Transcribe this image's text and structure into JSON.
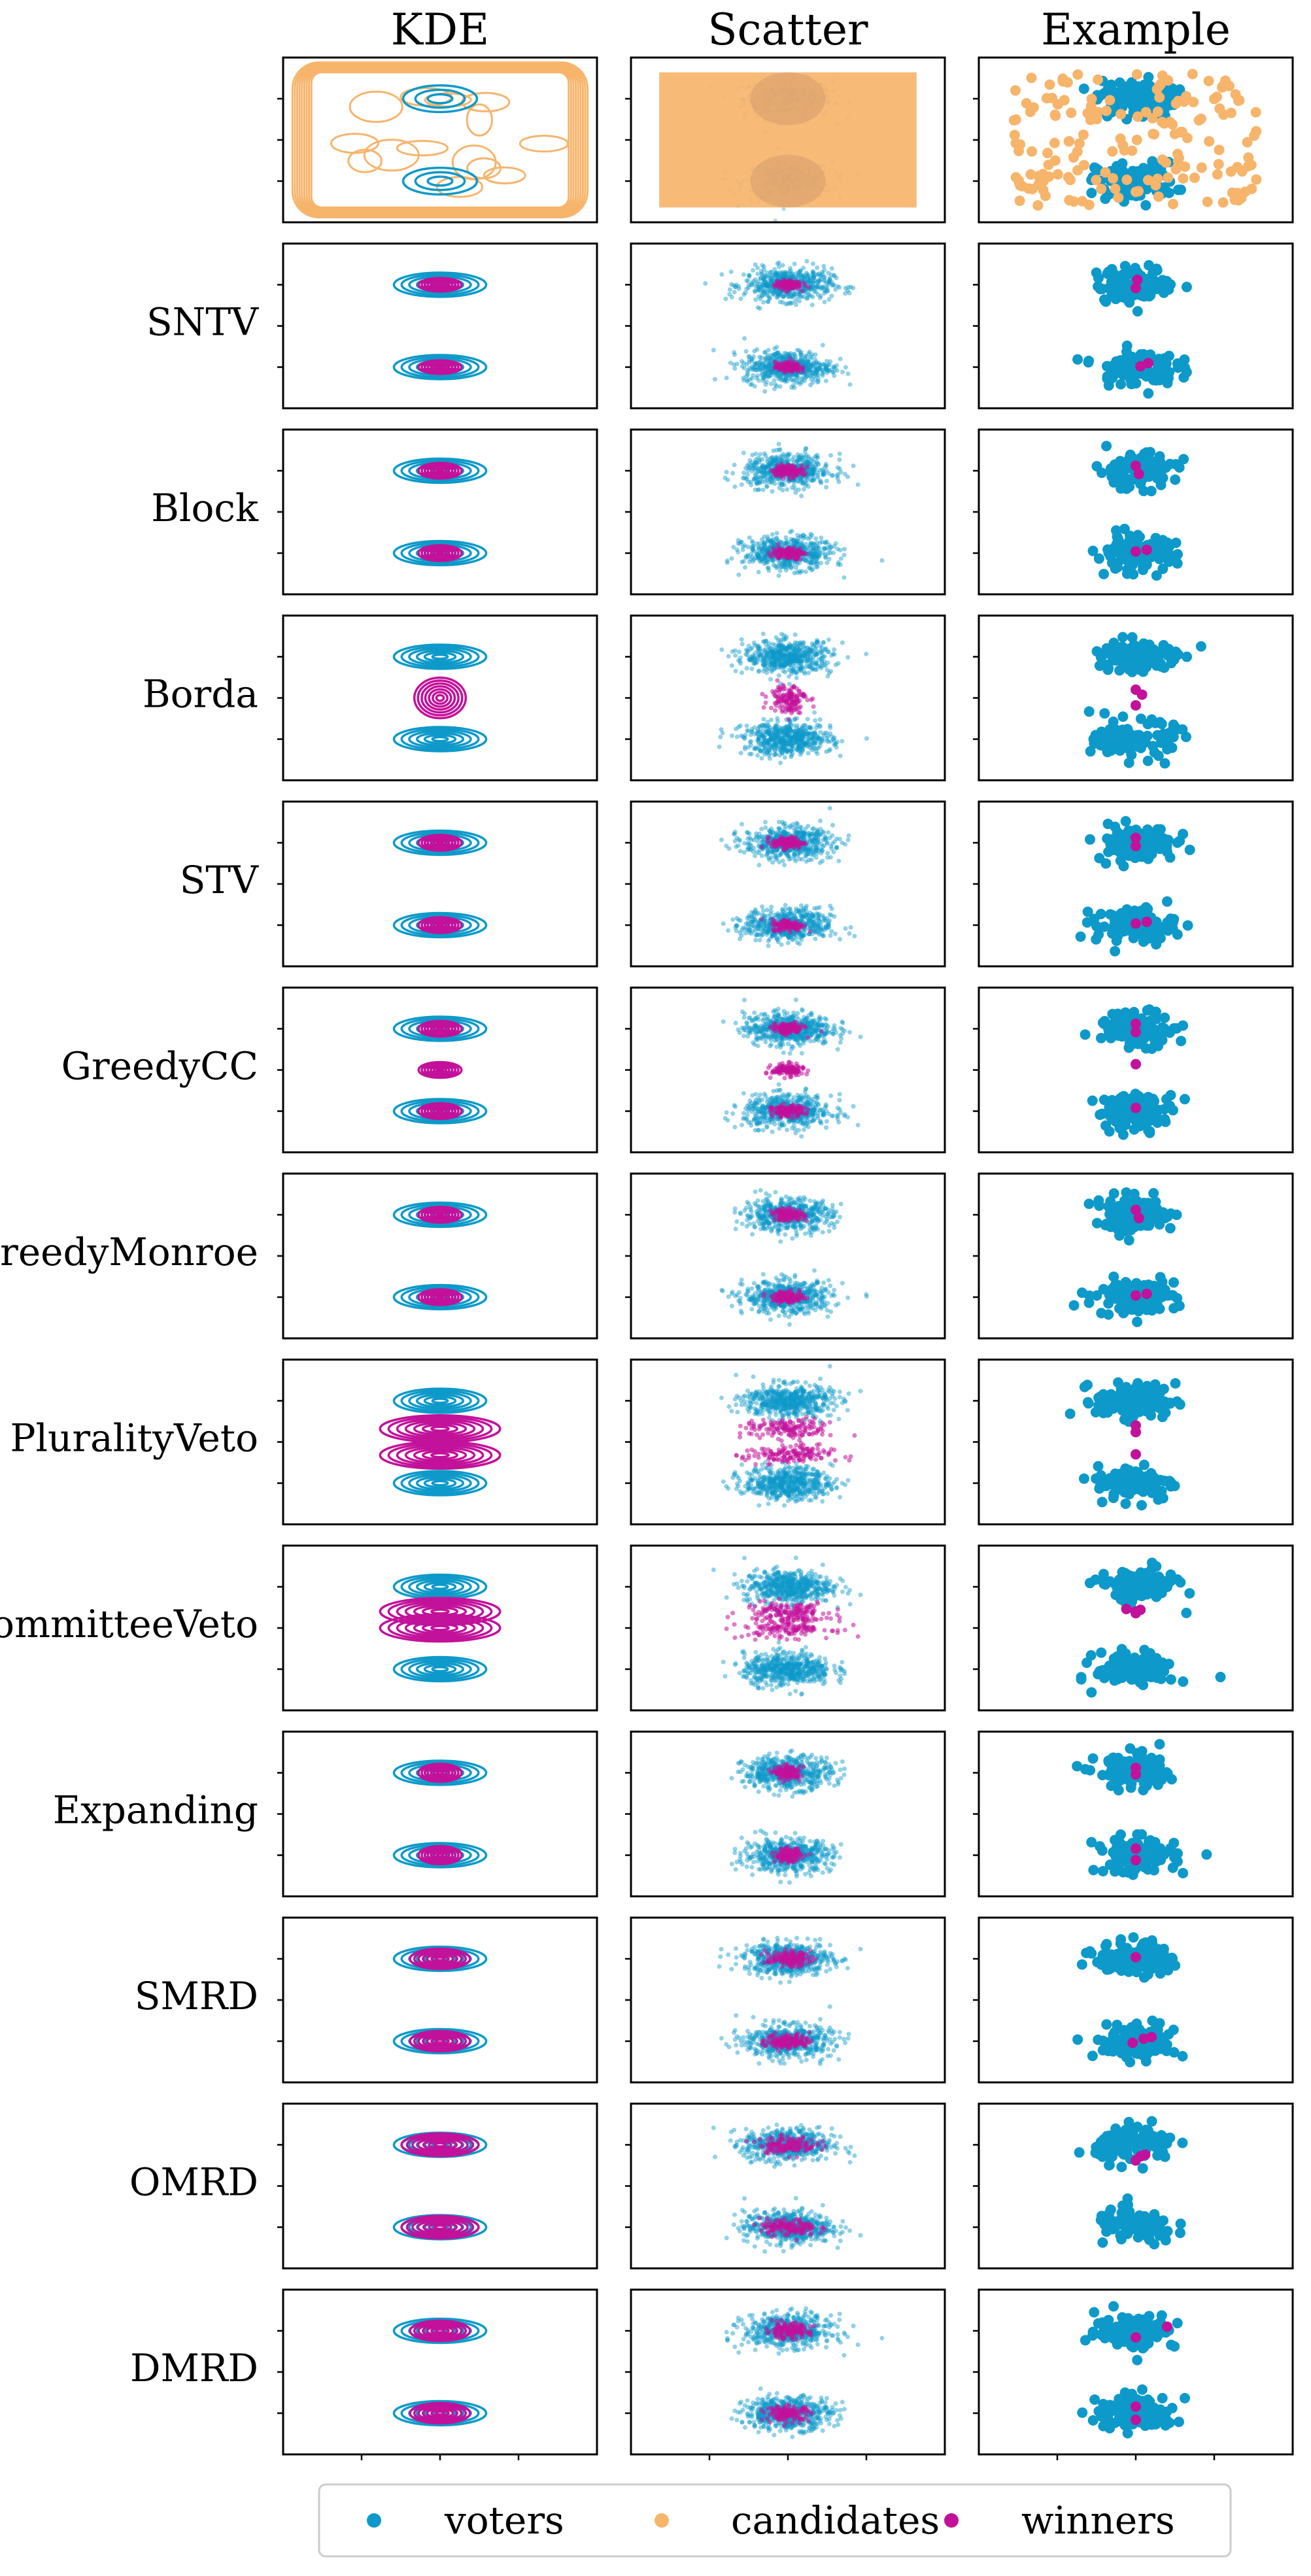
{
  "column_titles": [
    "KDE",
    "Scatter",
    "Example"
  ],
  "row_labels": [
    "",
    "SNTV",
    "Block",
    "Borda",
    "STV",
    "GreedyCC",
    "GreedyMonroe",
    "PluralityVeto",
    "CommitteeVeto",
    "Expanding",
    "SMRD",
    "OMRD",
    "DMRD"
  ],
  "legend": [
    {
      "label": "voters",
      "color": "#0d99c9"
    },
    {
      "label": "candidates",
      "color": "#f7b46b"
    },
    {
      "label": "winners",
      "color": "#c2119a"
    }
  ],
  "colors": {
    "voters": "#0d99c9",
    "candidates": "#f7b46b",
    "winners": "#c2119a"
  },
  "chart_data": {
    "type": "scatter",
    "title": "",
    "xlabel": "",
    "ylabel": "",
    "xlim": [
      -1,
      1
    ],
    "ylim": [
      -1,
      1
    ],
    "grid": false,
    "legend_position": "bottom-center",
    "voter_clusters": [
      {
        "x": 0,
        "y": 0.5,
        "sx": 0.14,
        "sy": 0.07
      },
      {
        "x": 0,
        "y": -0.5,
        "sx": 0.14,
        "sy": 0.07
      }
    ],
    "rows": [
      {
        "method": "",
        "shows": "voters and candidates"
      },
      {
        "method": "SNTV",
        "winner_centers": [
          [
            0,
            0.5
          ],
          [
            0,
            -0.5
          ]
        ],
        "winner_spread": [
          0.04,
          0.03
        ],
        "example_winners": [
          [
            0.01,
            0.56
          ],
          [
            0.0,
            0.46
          ],
          [
            0.03,
            -0.49
          ],
          [
            0.08,
            -0.45
          ]
        ]
      },
      {
        "method": "Block",
        "winner_centers": [
          [
            0,
            0.5
          ],
          [
            0,
            -0.5
          ]
        ],
        "winner_spread": [
          0.05,
          0.035
        ],
        "example_winners": [
          [
            0.0,
            0.56
          ],
          [
            0.02,
            0.46
          ],
          [
            0.0,
            -0.48
          ],
          [
            0.07,
            -0.46
          ]
        ]
      },
      {
        "method": "Borda",
        "winner_centers": [
          [
            0,
            0.0
          ]
        ],
        "winner_spread": [
          0.06,
          0.09
        ],
        "example_winners": [
          [
            0.0,
            0.1
          ],
          [
            0.04,
            0.04
          ],
          [
            0.0,
            -0.09
          ]
        ]
      },
      {
        "method": "STV",
        "winner_centers": [
          [
            0,
            0.5
          ],
          [
            0,
            -0.5
          ]
        ],
        "winner_spread": [
          0.05,
          0.035
        ],
        "example_winners": [
          [
            0.0,
            0.56
          ],
          [
            0.0,
            0.46
          ],
          [
            0.0,
            -0.48
          ],
          [
            0.07,
            -0.46
          ]
        ]
      },
      {
        "method": "GreedyCC",
        "winner_centers": [
          [
            0,
            0.5
          ],
          [
            0,
            0.0
          ],
          [
            0,
            -0.5
          ]
        ],
        "winner_spread": [
          0.05,
          0.035
        ],
        "example_winners": [
          [
            0.0,
            0.56
          ],
          [
            0.0,
            0.46
          ],
          [
            0.0,
            0.07
          ],
          [
            0.0,
            -0.46
          ]
        ]
      },
      {
        "method": "GreedyMonroe",
        "winner_centers": [
          [
            0,
            0.5
          ],
          [
            0,
            -0.5
          ]
        ],
        "winner_spread": [
          0.05,
          0.035
        ],
        "example_winners": [
          [
            0.0,
            0.56
          ],
          [
            0.02,
            0.46
          ],
          [
            0.0,
            -0.48
          ],
          [
            0.07,
            -0.46
          ]
        ]
      },
      {
        "method": "PluralityVeto",
        "winner_centers": [
          [
            0,
            0.16
          ],
          [
            0,
            -0.16
          ]
        ],
        "winner_spread": [
          0.14,
          0.06
        ],
        "example_winners": [
          [
            0.0,
            0.2
          ],
          [
            0.0,
            0.12
          ],
          [
            0.0,
            -0.15
          ]
        ]
      },
      {
        "method": "CommitteeVeto",
        "winner_centers": [
          [
            0,
            0.2
          ],
          [
            0,
            0.0
          ]
        ],
        "winner_spread": [
          0.14,
          0.06
        ],
        "example_winners": [
          [
            -0.06,
            0.23
          ],
          [
            0.0,
            0.2
          ],
          [
            0.03,
            0.22
          ],
          [
            0.0,
            0.18
          ]
        ]
      },
      {
        "method": "Expanding",
        "winner_centers": [
          [
            0,
            0.5
          ],
          [
            0,
            -0.5
          ]
        ],
        "winner_spread": [
          0.04,
          0.04
        ],
        "example_winners": [
          [
            0.0,
            0.56
          ],
          [
            0.0,
            0.48
          ],
          [
            0.0,
            -0.42
          ],
          [
            0.0,
            -0.56
          ]
        ]
      },
      {
        "method": "SMRD",
        "winner_centers": [
          [
            0,
            0.5
          ],
          [
            0,
            -0.5
          ]
        ],
        "winner_spread": [
          0.07,
          0.045
        ],
        "example_winners": [
          [
            0.0,
            0.52
          ],
          [
            -0.02,
            -0.52
          ],
          [
            0.05,
            -0.47
          ],
          [
            0.1,
            -0.45
          ]
        ]
      },
      {
        "method": "OMRD",
        "winner_centers": [
          [
            0,
            0.5
          ],
          [
            0,
            -0.5
          ]
        ],
        "winner_spread": [
          0.09,
          0.05
        ],
        "example_winners": [
          [
            0.06,
            0.38
          ],
          [
            0.03,
            0.36
          ],
          [
            0.0,
            0.31
          ]
        ]
      },
      {
        "method": "DMRD",
        "winner_centers": [
          [
            0,
            0.5
          ],
          [
            0,
            -0.5
          ]
        ],
        "winner_spread": [
          0.07,
          0.045
        ],
        "example_winners": [
          [
            0.2,
            0.55
          ],
          [
            0.0,
            0.42
          ],
          [
            0.0,
            -0.42
          ],
          [
            0.0,
            -0.58
          ]
        ]
      }
    ]
  }
}
